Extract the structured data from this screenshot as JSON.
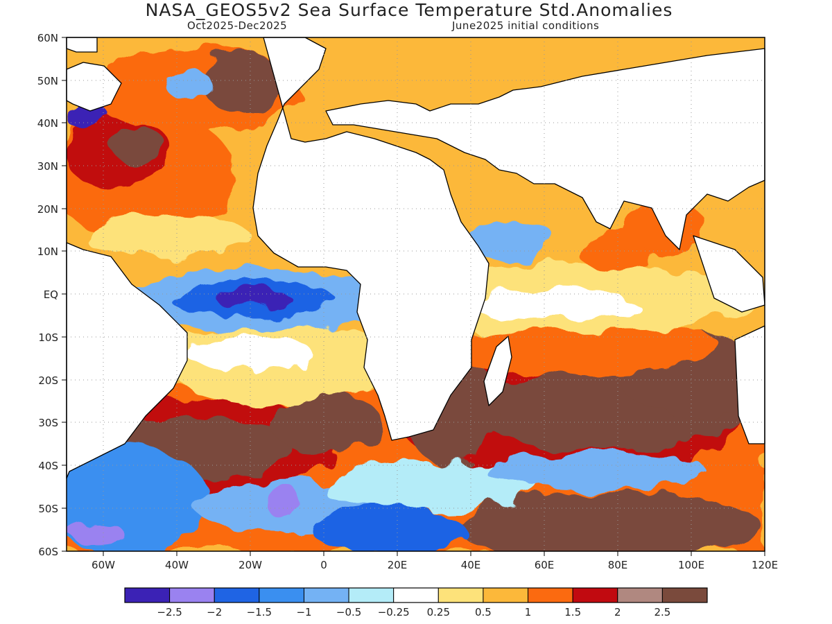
{
  "header": {
    "title": "NASA_GEOS5v2 Sea Surface Temperature Std.Anomalies",
    "period": "Oct2025-Dec2025",
    "init": "June2025 initial conditions"
  },
  "map": {
    "lat_labels": [
      "60N",
      "50N",
      "40N",
      "30N",
      "20N",
      "10N",
      "EQ",
      "10S",
      "20S",
      "30S",
      "40S",
      "50S",
      "60S"
    ],
    "lon_labels": [
      "60W",
      "40W",
      "20W",
      "0",
      "20E",
      "40E",
      "60E",
      "80E",
      "100E",
      "120E"
    ],
    "lon_range": [
      -70,
      120
    ],
    "lat_range": [
      -60,
      60
    ],
    "grid": "dotted",
    "land_color": "#ffffff"
  },
  "colorbar": {
    "colors": [
      "#3b22b5",
      "#9a82f0",
      "#1f64e4",
      "#3a8ff0",
      "#74b2f4",
      "#b4ecf8",
      "#ffffff",
      "#fde27a",
      "#fcb83a",
      "#fb6a10",
      "#c10a10",
      "#b08880",
      "#7a4a3c"
    ],
    "labels": [
      "-2.5",
      "-2",
      "-1.5",
      "-1",
      "-0.5",
      "-0.25",
      "0.25",
      "0.5",
      "1",
      "1.5",
      "2",
      "2.5"
    ]
  },
  "anomaly_regions": [
    {
      "name": "Equatorial Atlantic cold tongue",
      "value": -2.5
    },
    {
      "name": "Southwest Atlantic / Southern Ocean",
      "value": -1
    },
    {
      "name": "North Atlantic subtropics",
      "value": 1.5
    },
    {
      "name": "South Indian Ocean",
      "value": 2.5
    },
    {
      "name": "South Atlantic midlatitudes",
      "value": 2.5
    },
    {
      "name": "Western Indian Ocean",
      "value": 0.5
    }
  ]
}
